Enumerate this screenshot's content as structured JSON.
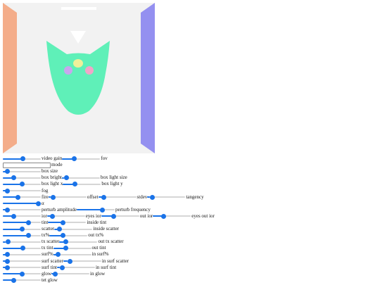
{
  "controls": [
    [
      {
        "label": "video gain",
        "value": 0.54
      },
      {
        "label": "fov",
        "value": 0.28
      }
    ],
    [
      {
        "label": "mode"
      }
    ],
    [
      {
        "label": "box size",
        "value": 0.07
      }
    ],
    [
      {
        "label": "box bright",
        "value": 0.26
      },
      {
        "label": "box light size",
        "value": 0.06
      }
    ],
    [
      {
        "label": "box light x",
        "value": 0.5
      },
      {
        "label": "box light y",
        "value": 0.3
      }
    ],
    [
      {
        "label": "fog",
        "value": 0.07
      }
    ],
    [
      {
        "label": "fire",
        "value": 0.39
      },
      {
        "label": "offset",
        "value": 0.07
      },
      {
        "label": "stdev",
        "value": 0.1
      },
      {
        "label": "tangency",
        "value": 0.07
      }
    ],
    [
      {
        "label": "α",
        "value": 1
      }
    ],
    [
      {
        "label": "perturb amplitude",
        "value": 0.07
      },
      {
        "label": "perturb frequency",
        "value": 0.7
      }
    ],
    [
      {
        "label": "ior",
        "value": 0.26
      },
      {
        "label": "eyes ior",
        "value": 0.1
      },
      {
        "label": "out ior",
        "value": 0.3
      },
      {
        "label": "eyes out ior",
        "value": 0.25
      }
    ],
    [
      {
        "label": "tint",
        "value": 0.7
      },
      {
        "label": "inside tint",
        "value": 0.37
      }
    ],
    [
      {
        "label": "scatter",
        "value": 0.52
      },
      {
        "label": "inside scatter",
        "value": 0.08
      }
    ],
    [
      {
        "label": "tx%",
        "value": 0.7
      },
      {
        "label": "out tx%",
        "value": 0.33
      }
    ],
    [
      {
        "label": "tx scatter",
        "value": 0.08
      },
      {
        "label": "out tx scatter",
        "value": 0.12
      }
    ],
    [
      {
        "label": "tx tint",
        "value": 0.54
      },
      {
        "label": "out tint",
        "value": 0.3
      }
    ],
    [
      {
        "label": "surf%",
        "value": 0.07
      },
      {
        "label": "in surf%",
        "value": 0.08
      }
    ],
    [
      {
        "label": "surf scatter",
        "value": 0.07
      },
      {
        "label": "in surf scatter",
        "value": 0.12
      }
    ],
    [
      {
        "label": "surf tint",
        "value": 0.07
      },
      {
        "label": "in surf tint",
        "value": 0.08
      }
    ],
    [
      {
        "label": "glow",
        "value": 0.52
      },
      {
        "label": "in glow",
        "value": 0.05
      }
    ],
    [
      {
        "label": "tet glow",
        "value": 0.26
      }
    ]
  ]
}
